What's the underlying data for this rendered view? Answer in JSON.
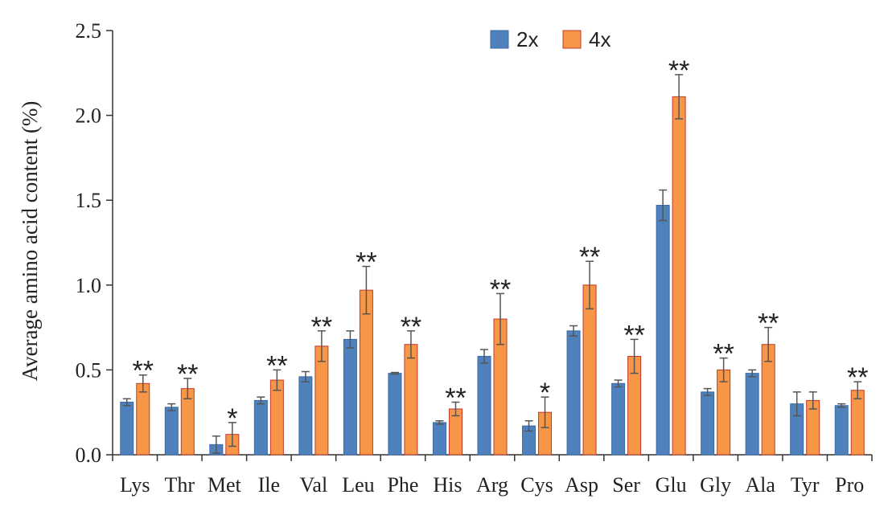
{
  "chart_data": {
    "type": "bar",
    "ylabel": "Average amino acid content (%)",
    "xlabel": "",
    "ylim": [
      0,
      2.5
    ],
    "yticks": [
      "0.0",
      "0.5",
      "1.0",
      "1.5",
      "2.0",
      "2.5"
    ],
    "legend_position": "top-center",
    "categories": [
      "Lys",
      "Thr",
      "Met",
      "Ile",
      "Val",
      "Leu",
      "Phe",
      "His",
      "Arg",
      "Cys",
      "Asp",
      "Ser",
      "Glu",
      "Gly",
      "Ala",
      "Tyr",
      "Pro"
    ],
    "series": [
      {
        "name": "2x",
        "color": "#4f81bd",
        "edge": "#3a6aa5",
        "values": [
          0.31,
          0.28,
          0.06,
          0.32,
          0.46,
          0.68,
          0.48,
          0.19,
          0.58,
          0.17,
          0.73,
          0.42,
          1.47,
          0.37,
          0.48,
          0.3,
          0.29
        ],
        "errors": [
          0.02,
          0.02,
          0.05,
          0.02,
          0.03,
          0.05,
          0.005,
          0.01,
          0.04,
          0.03,
          0.03,
          0.02,
          0.09,
          0.02,
          0.02,
          0.07,
          0.01
        ]
      },
      {
        "name": "4x",
        "color": "#f79646",
        "edge": "#c0392b",
        "values": [
          0.42,
          0.39,
          0.12,
          0.44,
          0.64,
          0.97,
          0.65,
          0.27,
          0.8,
          0.25,
          1.0,
          0.58,
          2.11,
          0.5,
          0.65,
          0.32,
          0.38
        ],
        "errors": [
          0.05,
          0.06,
          0.07,
          0.06,
          0.09,
          0.14,
          0.08,
          0.04,
          0.15,
          0.09,
          0.14,
          0.1,
          0.13,
          0.07,
          0.1,
          0.05,
          0.05
        ]
      }
    ],
    "significance": [
      "**",
      "**",
      "*",
      "**",
      "**",
      "**",
      "**",
      "**",
      "**",
      "*",
      "**",
      "**",
      "**",
      "**",
      "**",
      "",
      "**"
    ]
  }
}
